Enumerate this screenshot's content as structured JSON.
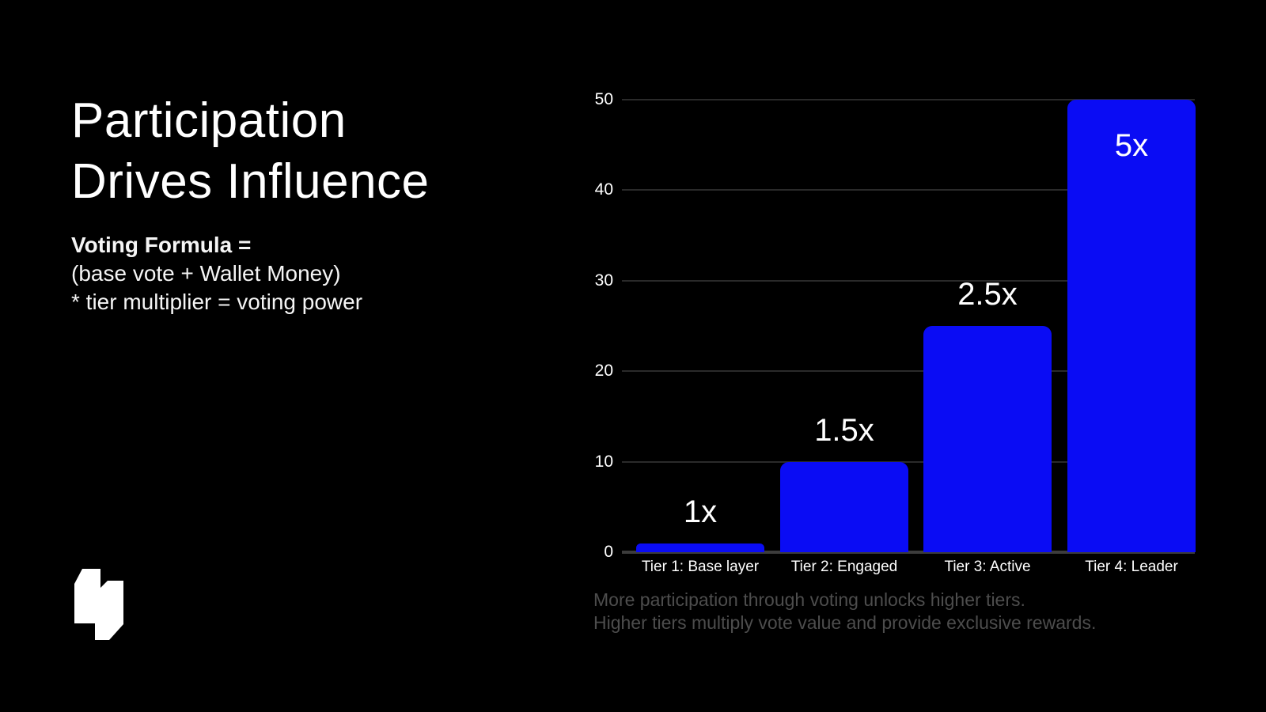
{
  "colors": {
    "background": "#000000",
    "bar": "#0a0cf4",
    "grid": "#2a2a2a",
    "axis": "#3c3c3c",
    "text": "#ffffff",
    "muted": "#4d4d4d"
  },
  "left_panel": {
    "title_line1": "Participation",
    "title_line2": "Drives Influence",
    "formula_heading": "Voting Formula =",
    "formula_line1": "(base vote + Wallet Money)",
    "formula_line2": "* tier multiplier = voting power",
    "logo_icon": "company-logo"
  },
  "chart_data": {
    "type": "bar",
    "categories": [
      "Tier 1: Base layer",
      "Tier 2: Engaged",
      "Tier 3: Active",
      "Tier 4: Leader"
    ],
    "values": [
      1,
      10,
      25,
      50
    ],
    "bar_labels": [
      "1x",
      "1.5x",
      "2.5x",
      "5x"
    ],
    "title": "",
    "xlabel": "",
    "ylabel": "",
    "ylim": [
      0,
      50
    ],
    "yticks": [
      0,
      10,
      20,
      30,
      40,
      50
    ],
    "grid": true,
    "legend": "none",
    "bar_color": "#0a0cf4"
  },
  "caption": {
    "line1": "More participation through voting unlocks higher tiers.",
    "line2": "Higher tiers multiply vote value and provide exclusive rewards."
  }
}
